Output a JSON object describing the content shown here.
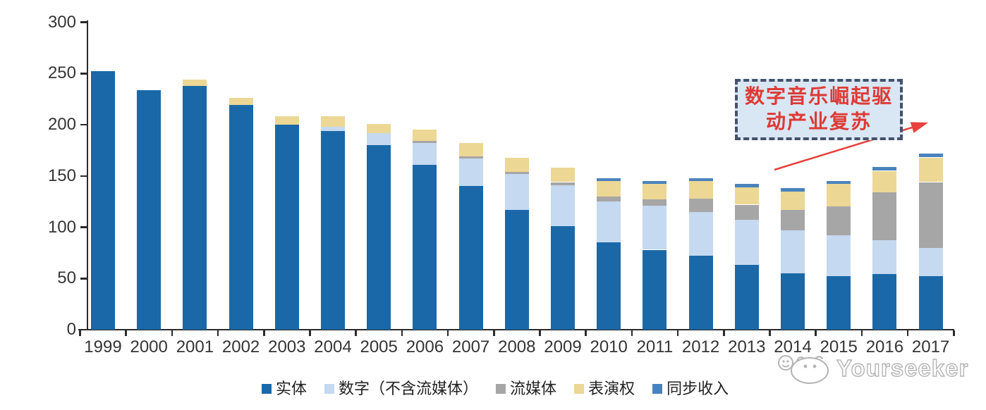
{
  "chart_data": {
    "type": "bar",
    "stacked": true,
    "categories": [
      "1999",
      "2000",
      "2001",
      "2002",
      "2003",
      "2004",
      "2005",
      "2006",
      "2007",
      "2008",
      "2009",
      "2010",
      "2011",
      "2012",
      "2013",
      "2014",
      "2015",
      "2016",
      "2017"
    ],
    "series": [
      {
        "name": "实体",
        "color": "#1A68A8",
        "values": [
          252,
          234,
          238,
          219,
          200,
          194,
          180,
          161,
          140,
          117,
          101,
          85,
          78,
          72,
          63,
          55,
          52,
          54,
          52
        ]
      },
      {
        "name": "数字（不含流媒体）",
        "color": "#C5D9F0",
        "values": [
          0,
          0,
          0,
          0,
          0,
          4,
          12,
          21,
          27,
          35,
          40,
          40,
          43,
          43,
          44,
          42,
          40,
          33,
          28
        ]
      },
      {
        "name": "流媒体",
        "color": "#A6A6A6",
        "values": [
          0,
          0,
          0,
          0,
          0,
          0,
          0,
          2,
          2,
          2,
          3,
          5,
          6,
          13,
          15,
          20,
          28,
          47,
          64
        ]
      },
      {
        "name": "表演权",
        "color": "#ECD794",
        "values": [
          0,
          0,
          6,
          7,
          8,
          10,
          9,
          11,
          13,
          14,
          14,
          15,
          15,
          17,
          17,
          18,
          22,
          21,
          24
        ]
      },
      {
        "name": "同步收入",
        "color": "#4A83BC",
        "values": [
          0,
          0,
          0,
          0,
          0,
          0,
          0,
          0,
          0,
          0,
          0,
          3,
          3,
          3,
          3,
          3,
          3,
          4,
          4
        ]
      }
    ],
    "ylim": [
      0,
      300
    ],
    "yticks": [
      0,
      50,
      100,
      150,
      200,
      250,
      300
    ],
    "grid": false,
    "legend_position": "bottom"
  },
  "annotation": {
    "line1": "数字音乐崛起驱",
    "line2": "动产业复苏",
    "text_color": "#DE3A35",
    "box_fill": "#D9E6F4",
    "box_border_color": "#44516B",
    "arrow_color": "#E8403C"
  },
  "watermark": {
    "text": "Yourseeker",
    "color": "#B4B4B4"
  },
  "axis_color": "#2B2B2B"
}
